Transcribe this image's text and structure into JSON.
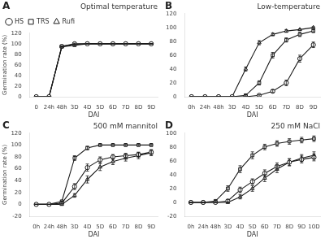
{
  "chart_data": [
    {
      "type": "line",
      "panel_label": "A",
      "title": "Optimal temperature",
      "categories": [
        "0",
        "24h",
        "48h",
        "3D",
        "4D",
        "5D",
        "6D",
        "7D",
        "8D",
        "9D"
      ],
      "xlabel": "DAI",
      "ylabel": "Germination rate (%)",
      "ylim": [
        0,
        120
      ],
      "yticks": [
        0,
        20,
        40,
        60,
        80,
        100,
        120
      ],
      "grid": false,
      "legend": "upper left",
      "series": [
        {
          "name": "HS",
          "color": "#1a1a1a",
          "marker": "circle",
          "line_style": "solid",
          "values": [
            0,
            0,
            95,
            100,
            100,
            100,
            100,
            100,
            100,
            100
          ],
          "error": [
            0,
            0,
            1,
            1,
            0,
            0,
            0,
            0,
            0,
            0
          ]
        },
        {
          "name": "TRS",
          "color": "#1a1a1a",
          "marker": "square",
          "line_style": "solid",
          "values": [
            0,
            0,
            95,
            99,
            100,
            100,
            100,
            100,
            100,
            100
          ],
          "error": [
            0,
            0,
            1,
            1,
            0,
            0,
            0,
            0,
            0,
            0
          ]
        },
        {
          "name": "Rufi",
          "color": "#1a1a1a",
          "marker": "triangle",
          "line_style": "solid",
          "values": [
            0,
            0,
            94,
            97,
            100,
            100,
            100,
            100,
            100,
            100
          ],
          "error": [
            0,
            0,
            1,
            2,
            0,
            0,
            0,
            0,
            0,
            0
          ]
        }
      ]
    },
    {
      "type": "line",
      "panel_label": "B",
      "title": "Low-temperature",
      "categories": [
        "0h",
        "24h",
        "48h",
        "3D",
        "4D",
        "5D",
        "6D",
        "7D",
        "8D",
        "9D"
      ],
      "xlabel": "DAI",
      "ylim": [
        0,
        120
      ],
      "yticks": [
        0,
        20,
        40,
        60,
        80,
        100,
        120
      ],
      "grid": false,
      "series": [
        {
          "name": "HS",
          "color": "#1a1a1a",
          "marker": "circle",
          "line_style": "solid",
          "values": [
            0,
            0,
            0,
            0,
            0,
            2,
            8,
            20,
            55,
            75
          ],
          "error": [
            0,
            0,
            0,
            0,
            0,
            1,
            2,
            4,
            5,
            4
          ]
        },
        {
          "name": "TRS",
          "color": "#1a1a1a",
          "marker": "square",
          "line_style": "solid",
          "values": [
            0,
            0,
            0,
            0,
            2,
            20,
            60,
            82,
            90,
            95
          ],
          "error": [
            0,
            0,
            0,
            0,
            1,
            3,
            4,
            3,
            3,
            2
          ]
        },
        {
          "name": "Rufi",
          "color": "#1a1a1a",
          "marker": "triangle",
          "line_style": "solid",
          "values": [
            0,
            0,
            0,
            0,
            40,
            78,
            90,
            95,
            97,
            100
          ],
          "error": [
            0,
            0,
            0,
            0,
            3,
            3,
            2,
            2,
            1,
            1
          ]
        }
      ]
    },
    {
      "type": "line",
      "panel_label": "C",
      "title": "500 mM mannitol",
      "categories": [
        "0h",
        "24h",
        "48h",
        "3D",
        "4D",
        "5D",
        "6D",
        "7D",
        "8D",
        "9D"
      ],
      "xlabel": "DAI",
      "ylabel": "Germination rate (%)",
      "ylim": [
        -20,
        120
      ],
      "yticks": [
        -20,
        0,
        20,
        40,
        60,
        80,
        100,
        120
      ],
      "grid": false,
      "series": [
        {
          "name": "HS",
          "color": "#1a1a1a",
          "marker": "circle",
          "line_style": "solid",
          "values": [
            0,
            0,
            2,
            30,
            62,
            75,
            80,
            82,
            84,
            88
          ],
          "error": [
            0,
            0,
            1,
            5,
            6,
            5,
            4,
            4,
            4,
            4
          ]
        },
        {
          "name": "TRS",
          "color": "#1a1a1a",
          "marker": "square",
          "line_style": "solid",
          "values": [
            0,
            0,
            5,
            78,
            95,
            100,
            100,
            100,
            100,
            100
          ],
          "error": [
            0,
            0,
            1,
            4,
            3,
            1,
            1,
            1,
            1,
            1
          ]
        },
        {
          "name": "Rufi",
          "color": "#1a1a1a",
          "marker": "triangle",
          "line_style": "solid",
          "values": [
            0,
            0,
            0,
            15,
            42,
            63,
            72,
            78,
            82,
            87
          ],
          "error": [
            0,
            0,
            1,
            3,
            6,
            6,
            5,
            5,
            5,
            5
          ]
        }
      ]
    },
    {
      "type": "line",
      "panel_label": "D",
      "title": "250 mM NaCl",
      "categories": [
        "0h",
        "24h",
        "48h",
        "3D",
        "4D",
        "5D",
        "6D",
        "7D",
        "8D",
        "9D",
        "10D"
      ],
      "xlabel": "DAI",
      "ylim": [
        -20,
        100
      ],
      "yticks": [
        -20,
        0,
        20,
        40,
        60,
        80,
        100
      ],
      "grid": false,
      "series": [
        {
          "name": "HS",
          "color": "#1a1a1a",
          "marker": "circle",
          "line_style": "solid",
          "values": [
            0,
            0,
            0,
            2,
            18,
            30,
            42,
            52,
            58,
            62,
            65
          ],
          "error": [
            0,
            0,
            0,
            2,
            4,
            4,
            5,
            5,
            5,
            5,
            5
          ]
        },
        {
          "name": "TRS",
          "color": "#1a1a1a",
          "marker": "square",
          "line_style": "solid",
          "values": [
            0,
            0,
            2,
            20,
            48,
            68,
            80,
            85,
            88,
            90,
            92
          ],
          "error": [
            0,
            0,
            1,
            4,
            5,
            5,
            4,
            4,
            4,
            4,
            4
          ]
        },
        {
          "name": "Rufi",
          "color": "#1a1a1a",
          "marker": "triangle",
          "line_style": "solid",
          "values": [
            0,
            0,
            0,
            0,
            8,
            20,
            35,
            48,
            58,
            64,
            68
          ],
          "error": [
            0,
            0,
            0,
            1,
            3,
            4,
            5,
            5,
            5,
            5,
            5
          ]
        }
      ]
    }
  ]
}
